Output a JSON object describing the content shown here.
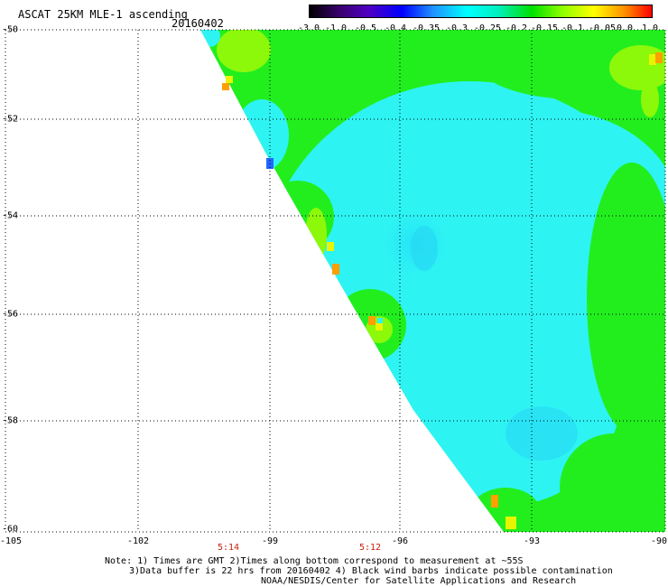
{
  "header": {
    "title": "ASCAT 25KM MLE-1 ascending",
    "date": "20160402"
  },
  "colorbar": {
    "ticks": [
      "-3.0",
      "-1.0",
      "-0.5",
      "-0.4",
      "-0.35",
      "-0.3",
      "-0.25",
      "-0.2",
      "-0.15",
      "-0.1",
      "-0.05",
      "0.0",
      "1.0"
    ],
    "colors": [
      "#000000",
      "#3a0070",
      "#5000c0",
      "#0000ff",
      "#2090ff",
      "#00ffff",
      "#00f0c0",
      "#00e000",
      "#90ff00",
      "#ffff00",
      "#ff9000",
      "#ff0000"
    ]
  },
  "map": {
    "lat_labels": [
      "-50",
      "-52",
      "-54",
      "-56",
      "-58",
      "-60"
    ],
    "lon_labels": [
      "-105",
      "-102",
      "-99",
      "-96",
      "-93",
      "-90"
    ],
    "time_labels": [
      "5:14",
      "5:12"
    ],
    "colors": {
      "swath_cyan": "#2ef3f3",
      "swath_green": "#22ee1e",
      "swath_lightgreen": "#8cf80a",
      "outlier_orange": "#ff9f00",
      "outlier_yellow": "#e8f500",
      "outlier_blue": "#2266ff",
      "grid": "#000000"
    }
  },
  "notes": {
    "line1": "Note: 1) Times are GMT 2)Times along bottom correspond to measurement at ~55S",
    "line2": "3)Data buffer is 22 hrs from 20160402 4) Black wind barbs indicate possible contamination",
    "line3": "NOAA/NESDIS/Center for Satellite Applications and Research"
  }
}
